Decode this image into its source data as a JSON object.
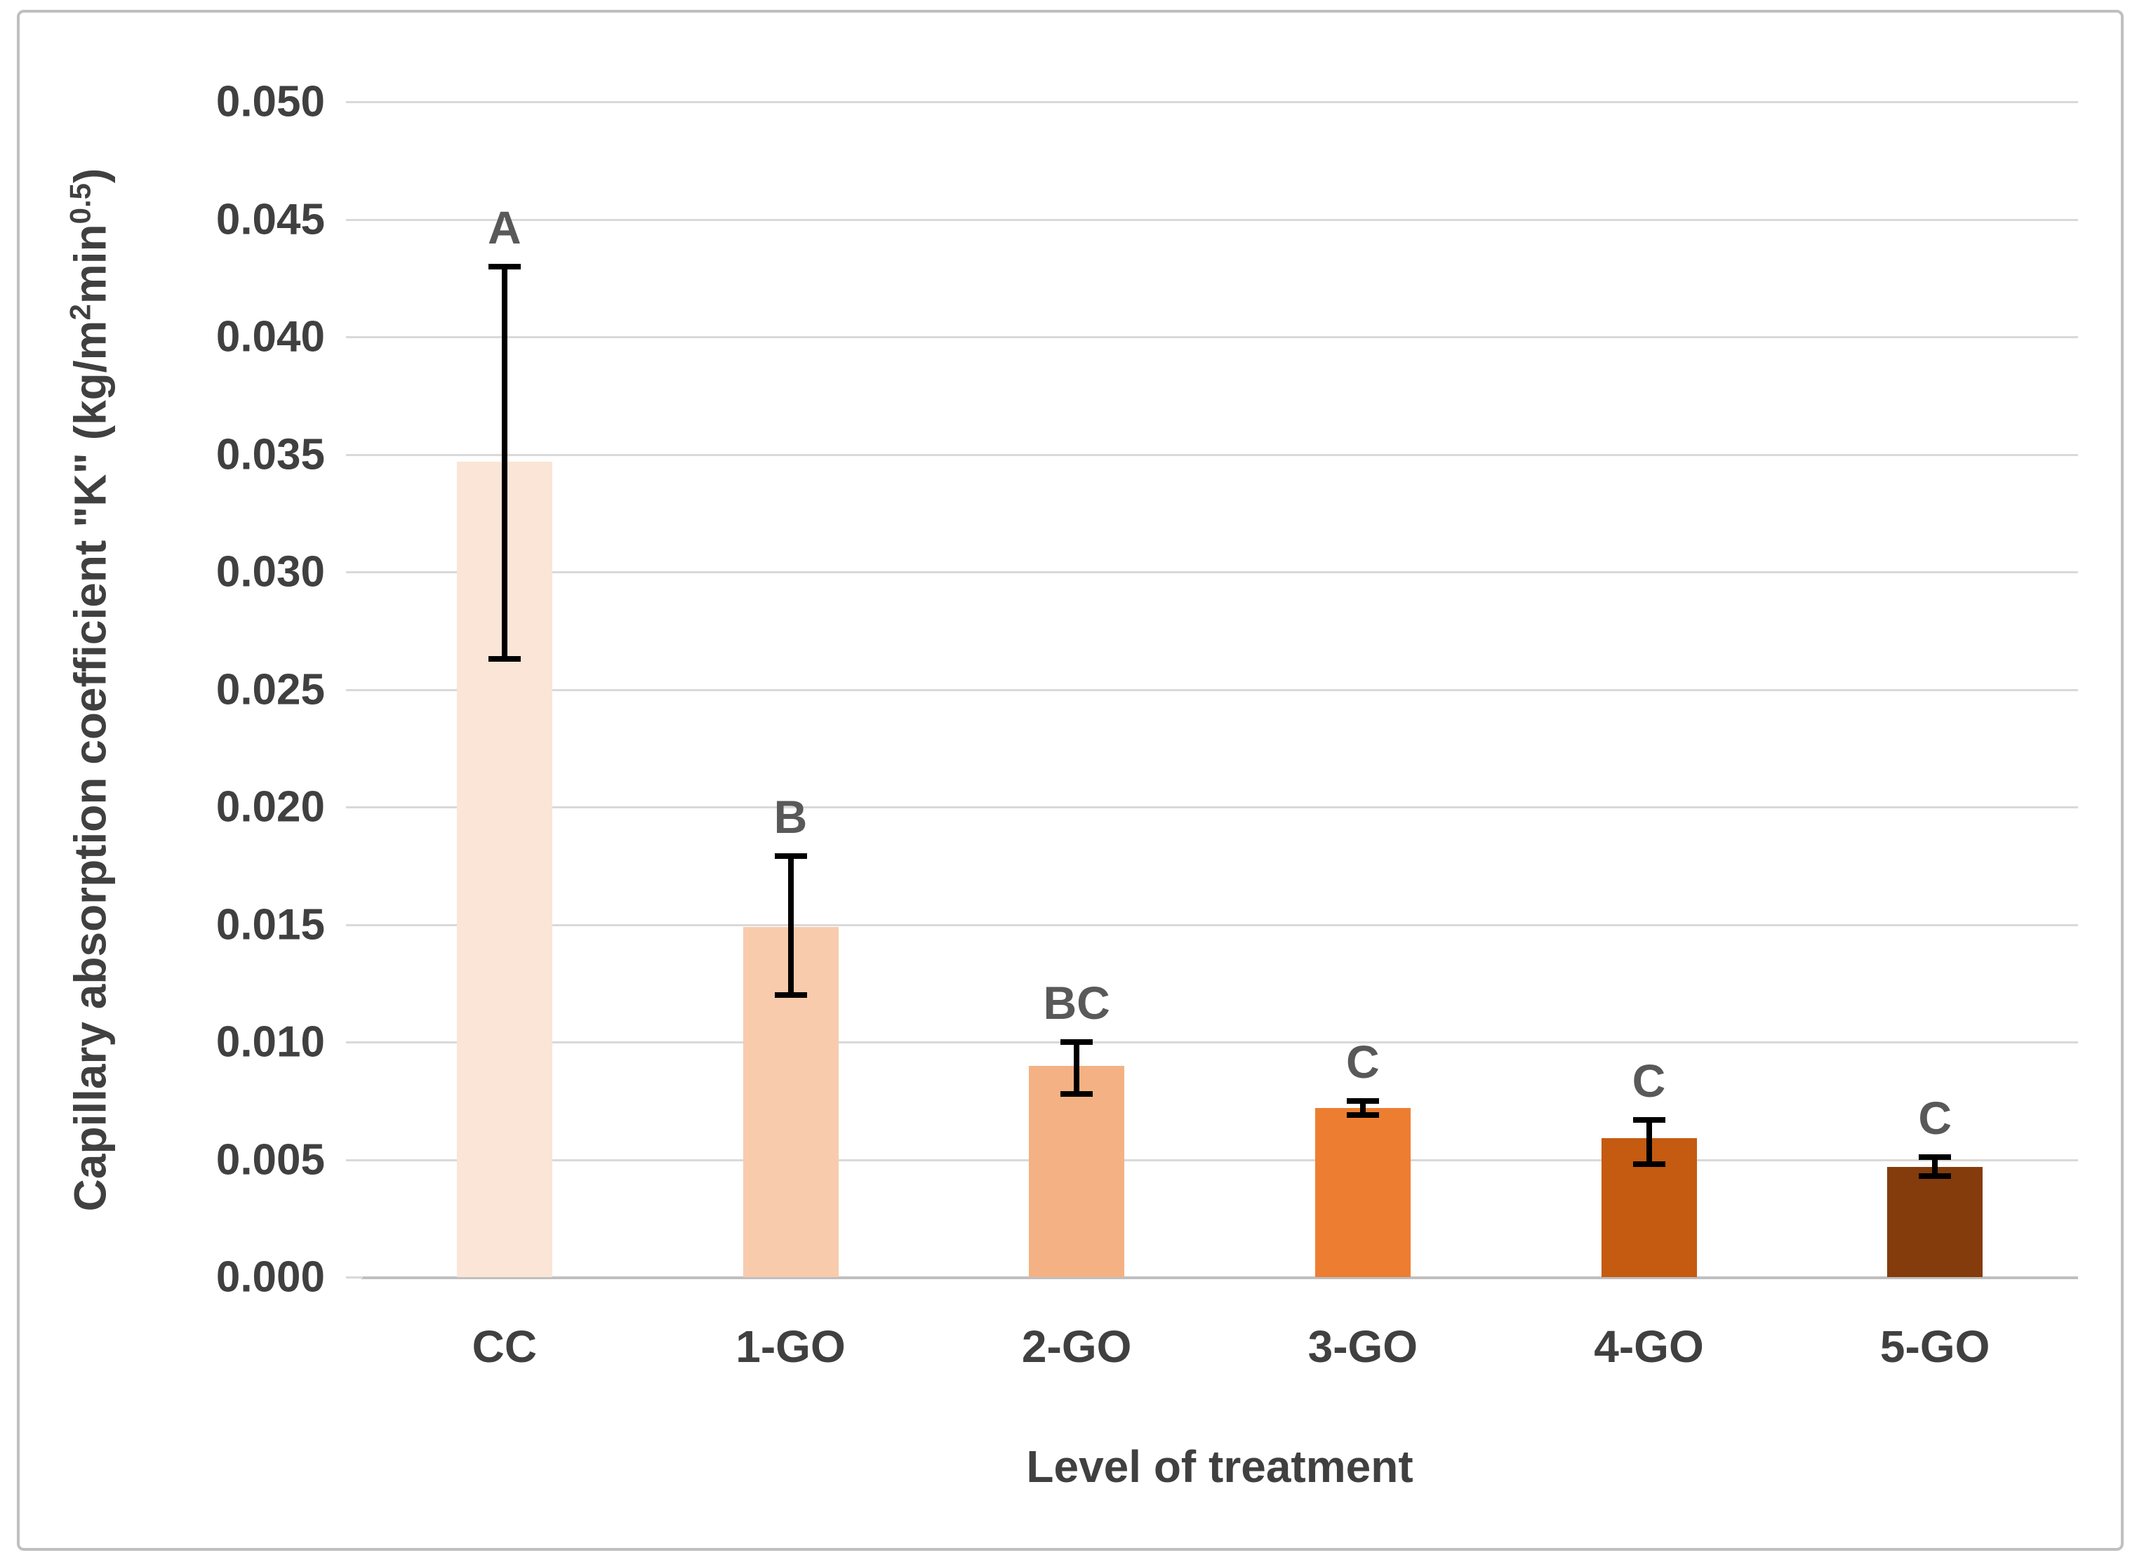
{
  "chart": {
    "frame_border_color": "#bfbfbf",
    "background_color": "#ffffff"
  },
  "axis_titles": {
    "x": "Level of treatment",
    "y_pre": "Capillary absorption coefficient \"K\" (kg/m",
    "y_sup1": "2",
    "y_mid": "min",
    "y_sup2": "0.5",
    "y_post": ")"
  },
  "chart_data": {
    "type": "bar",
    "title": "",
    "xlabel": "Level of treatment",
    "ylabel": "Capillary absorption coefficient \"K\" (kg/m^2 min^0.5)",
    "categories": [
      "CC",
      "1-GO",
      "2-GO",
      "3-GO",
      "4-GO",
      "5-GO"
    ],
    "values": [
      0.0347,
      0.0149,
      0.009,
      0.0072,
      0.0059,
      0.0047
    ],
    "error_up": [
      0.0083,
      0.003,
      0.001,
      0.0003,
      0.0008,
      0.0004
    ],
    "error_down": [
      0.0084,
      0.0029,
      0.0012,
      0.0003,
      0.0011,
      0.0004
    ],
    "sig_letters": [
      "A",
      "B",
      "BC",
      "C",
      "C",
      "C"
    ],
    "bar_colors": [
      "#FBE5D6",
      "#F8CBAD",
      "#F4B183",
      "#ED7D31",
      "#C55A11",
      "#843C0C"
    ],
    "ylim": [
      0.0,
      0.05
    ],
    "ytick_step": 0.005,
    "ytick_labels": [
      "0.000",
      "0.005",
      "0.010",
      "0.015",
      "0.020",
      "0.025",
      "0.030",
      "0.035",
      "0.040",
      "0.045",
      "0.050"
    ],
    "grid": true,
    "gridline_color": "#d9d9d9",
    "axisline_color": "#bfbfbf",
    "error_bar_color": "#000000",
    "letter_color": "#595959",
    "tick_label_color": "#404040",
    "legend": "none"
  }
}
